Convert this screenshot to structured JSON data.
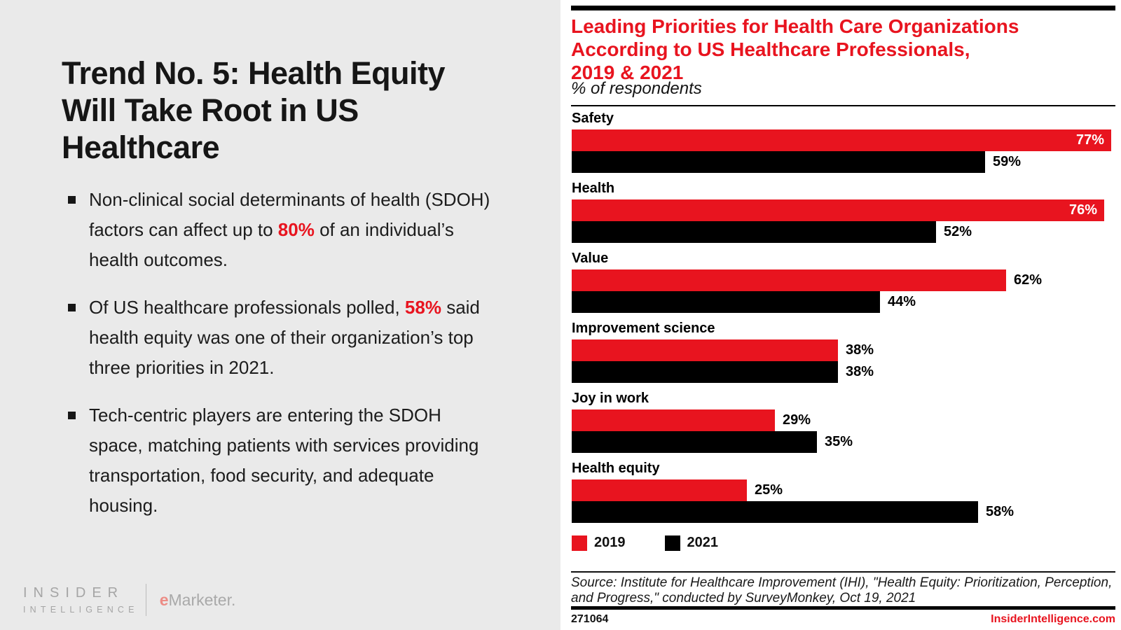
{
  "colors": {
    "brand_red": "#e8141f",
    "bar_black": "#000000",
    "left_bg": "#eaeaea",
    "panel_bg": "#ffffff",
    "logo_gray": "#a5a5a5",
    "emarketer_e": "#ec8c85"
  },
  "left_panel": {
    "title_lines": [
      "Trend No. 5: Health Equity",
      "Will Take Root in US",
      "Healthcare"
    ],
    "bullets": [
      {
        "segments": [
          {
            "t": "Non-clinical social determinants of health (SDOH) factors can affect up to "
          },
          {
            "t": "80%",
            "accent": true
          },
          {
            "t": " of an individual’s health outcomes."
          }
        ]
      },
      {
        "segments": [
          {
            "t": "Of US healthcare professionals polled, "
          },
          {
            "t": "58%",
            "accent": true
          },
          {
            "t": " said health equity was one of their organization’s top three priorities in 2021."
          }
        ]
      },
      {
        "segments": [
          {
            "t": "Tech-centric players are entering the SDOH space, matching patients with services providing transportation, food security, and adequate housing."
          }
        ]
      }
    ],
    "brand": {
      "line1": "INSIDER",
      "line2": "INTELLIGENCE",
      "emarketer_e": "e",
      "emarketer_rest": "Marketer",
      "trailing_mark": "."
    }
  },
  "chart": {
    "title_lines": [
      "Leading Priorities for Health Care Organizations",
      "According to US Healthcare Professionals,",
      "2019 & 2021"
    ],
    "subtitle": "% of respondents",
    "legend": [
      {
        "label": "2019",
        "color_key": "brand_red"
      },
      {
        "label": "2021",
        "color_key": "bar_black"
      }
    ],
    "source_lines": [
      "Source: Institute for Healthcare Improvement (IHI), \"Health Equity: Prioritization, Perception,",
      "and Progress,\" conducted by SurveyMonkey, Oct 19, 2021"
    ],
    "footer": {
      "chart_id": "271064",
      "site": "InsiderIntelligence.com"
    }
  },
  "chart_data": {
    "type": "bar",
    "orientation": "horizontal",
    "title": "Leading Priorities for Health Care Organizations According to US Healthcare Professionals, 2019 & 2021",
    "subtitle": "% of respondents",
    "categories": [
      "Safety",
      "Health",
      "Value",
      "Improvement science",
      "Joy in work",
      "Health equity"
    ],
    "series": [
      {
        "name": "2019",
        "color": "#e8141f",
        "values": [
          77,
          76,
          62,
          38,
          29,
          25
        ]
      },
      {
        "name": "2021",
        "color": "#000000",
        "values": [
          59,
          52,
          44,
          38,
          35,
          58
        ]
      }
    ],
    "unit": "%",
    "xlim": [
      0,
      80
    ],
    "value_labels": true,
    "grid": false,
    "legend_position": "bottom"
  }
}
